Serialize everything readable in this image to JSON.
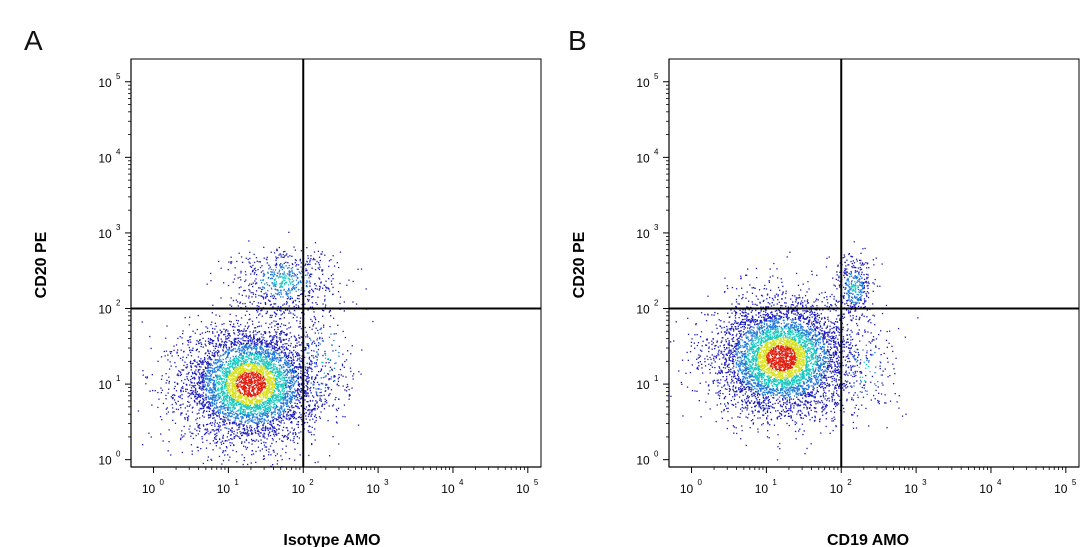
{
  "chart_data": [
    {
      "type": "scatter",
      "panel": "A",
      "xlabel": "Isotype AMO",
      "ylabel": "CD20 PE",
      "xscale": "log",
      "yscale": "log",
      "xlim": [
        0.5,
        150000
      ],
      "ylim": [
        0.8,
        200000
      ],
      "x_ticks": [
        "10",
        "10",
        "10",
        "10",
        "10",
        "10"
      ],
      "x_tick_exponents": [
        "0",
        "1",
        "2",
        "3",
        "4",
        "5"
      ],
      "y_ticks": [
        "10",
        "10",
        "10",
        "10",
        "10",
        "10"
      ],
      "y_tick_exponents": [
        "0",
        "1",
        "2",
        "3",
        "4",
        "5"
      ],
      "gates": {
        "x": 100,
        "y": 100
      },
      "grid": false,
      "clusters": [
        {
          "center": [
            20,
            10
          ],
          "spread_decades": [
            0.45,
            0.38
          ],
          "points": 5200
        },
        {
          "center": [
            55,
            230
          ],
          "spread_decades": [
            0.35,
            0.22
          ],
          "points": 650
        },
        {
          "center": [
            180,
            20
          ],
          "spread_decades": [
            0.25,
            0.45
          ],
          "points": 180
        }
      ]
    },
    {
      "type": "scatter",
      "panel": "B",
      "xlabel": "CD19 AMO",
      "ylabel": "CD20 PE",
      "xscale": "log",
      "yscale": "log",
      "xlim": [
        0.5,
        150000
      ],
      "ylim": [
        0.8,
        200000
      ],
      "x_ticks": [
        "10",
        "10",
        "10",
        "10",
        "10",
        "10"
      ],
      "x_tick_exponents": [
        "0",
        "1",
        "2",
        "3",
        "4",
        "5"
      ],
      "y_ticks": [
        "10",
        "10",
        "10",
        "10",
        "10",
        "10"
      ],
      "y_tick_exponents": [
        "0",
        "1",
        "2",
        "3",
        "4",
        "5"
      ],
      "gates": {
        "x": 100,
        "y": 100
      },
      "grid": false,
      "clusters": [
        {
          "center": [
            16,
            22
          ],
          "spread_decades": [
            0.45,
            0.38
          ],
          "points": 5200
        },
        {
          "center": [
            150,
            190
          ],
          "spread_decades": [
            0.12,
            0.22
          ],
          "points": 380
        },
        {
          "center": [
            200,
            15
          ],
          "spread_decades": [
            0.25,
            0.35
          ],
          "points": 160
        }
      ]
    }
  ],
  "colors": {
    "density_low": "#1a1ab8",
    "density_mid": "#18c8c0",
    "density_high_mid": "#d8e020",
    "density_high": "#e02010",
    "axes": "#000000"
  }
}
